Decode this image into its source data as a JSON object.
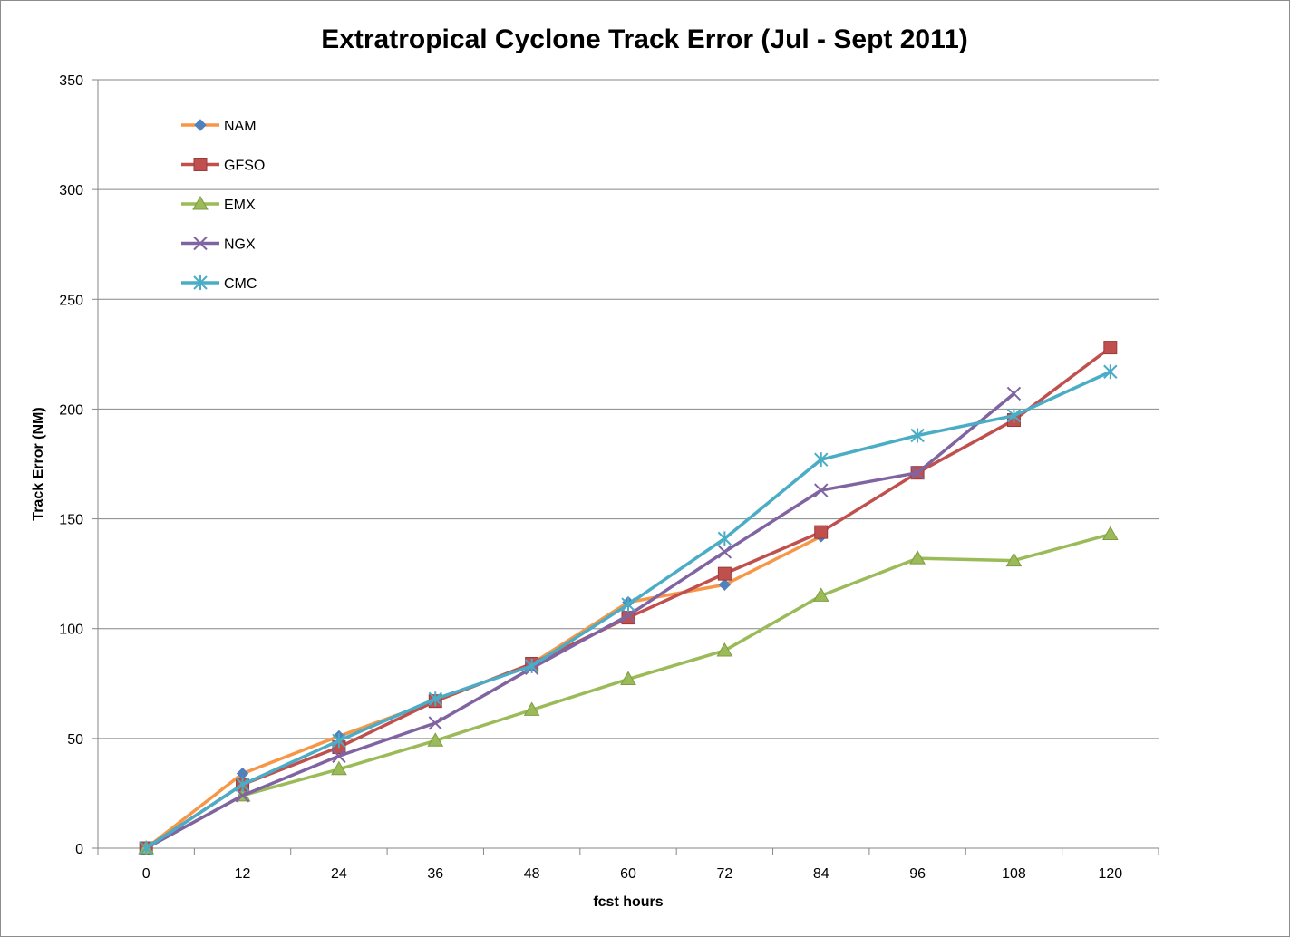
{
  "chart_data": {
    "type": "line",
    "title": "Extratropical Cyclone Track Error (Jul - Sept 2011)",
    "xlabel": "fcst hours",
    "ylabel": "Track Error  (NM)",
    "categories": [
      "0",
      "12",
      "24",
      "36",
      "48",
      "60",
      "72",
      "84",
      "96",
      "108",
      "120"
    ],
    "ylim": [
      0,
      350
    ],
    "yticks": [
      0,
      50,
      100,
      150,
      200,
      250,
      300,
      350
    ],
    "grid": "horizontal",
    "legend_position": "top-left",
    "series": [
      {
        "name": "NAM",
        "color": "#f79646",
        "marker_color": "#4f81bd",
        "marker": "diamond",
        "values": [
          0,
          34,
          51,
          67,
          84,
          112,
          120,
          142,
          null,
          null,
          null
        ]
      },
      {
        "name": "GFSO",
        "color": "#c0504d",
        "marker": "square",
        "values": [
          0,
          29,
          46,
          67,
          84,
          105,
          125,
          144,
          171,
          195,
          228
        ]
      },
      {
        "name": "EMX",
        "color": "#9bbb59",
        "marker": "triangle",
        "values": [
          0,
          24,
          36,
          49,
          63,
          77,
          90,
          115,
          132,
          131,
          143
        ]
      },
      {
        "name": "NGX",
        "color": "#8064a2",
        "marker": "x",
        "values": [
          0,
          24,
          42,
          57,
          82,
          106,
          135,
          163,
          171,
          207,
          null
        ]
      },
      {
        "name": "CMC",
        "color": "#4bacc6",
        "marker": "star",
        "values": [
          0,
          29,
          49,
          68,
          83,
          111,
          141,
          177,
          188,
          197,
          217
        ]
      }
    ]
  }
}
